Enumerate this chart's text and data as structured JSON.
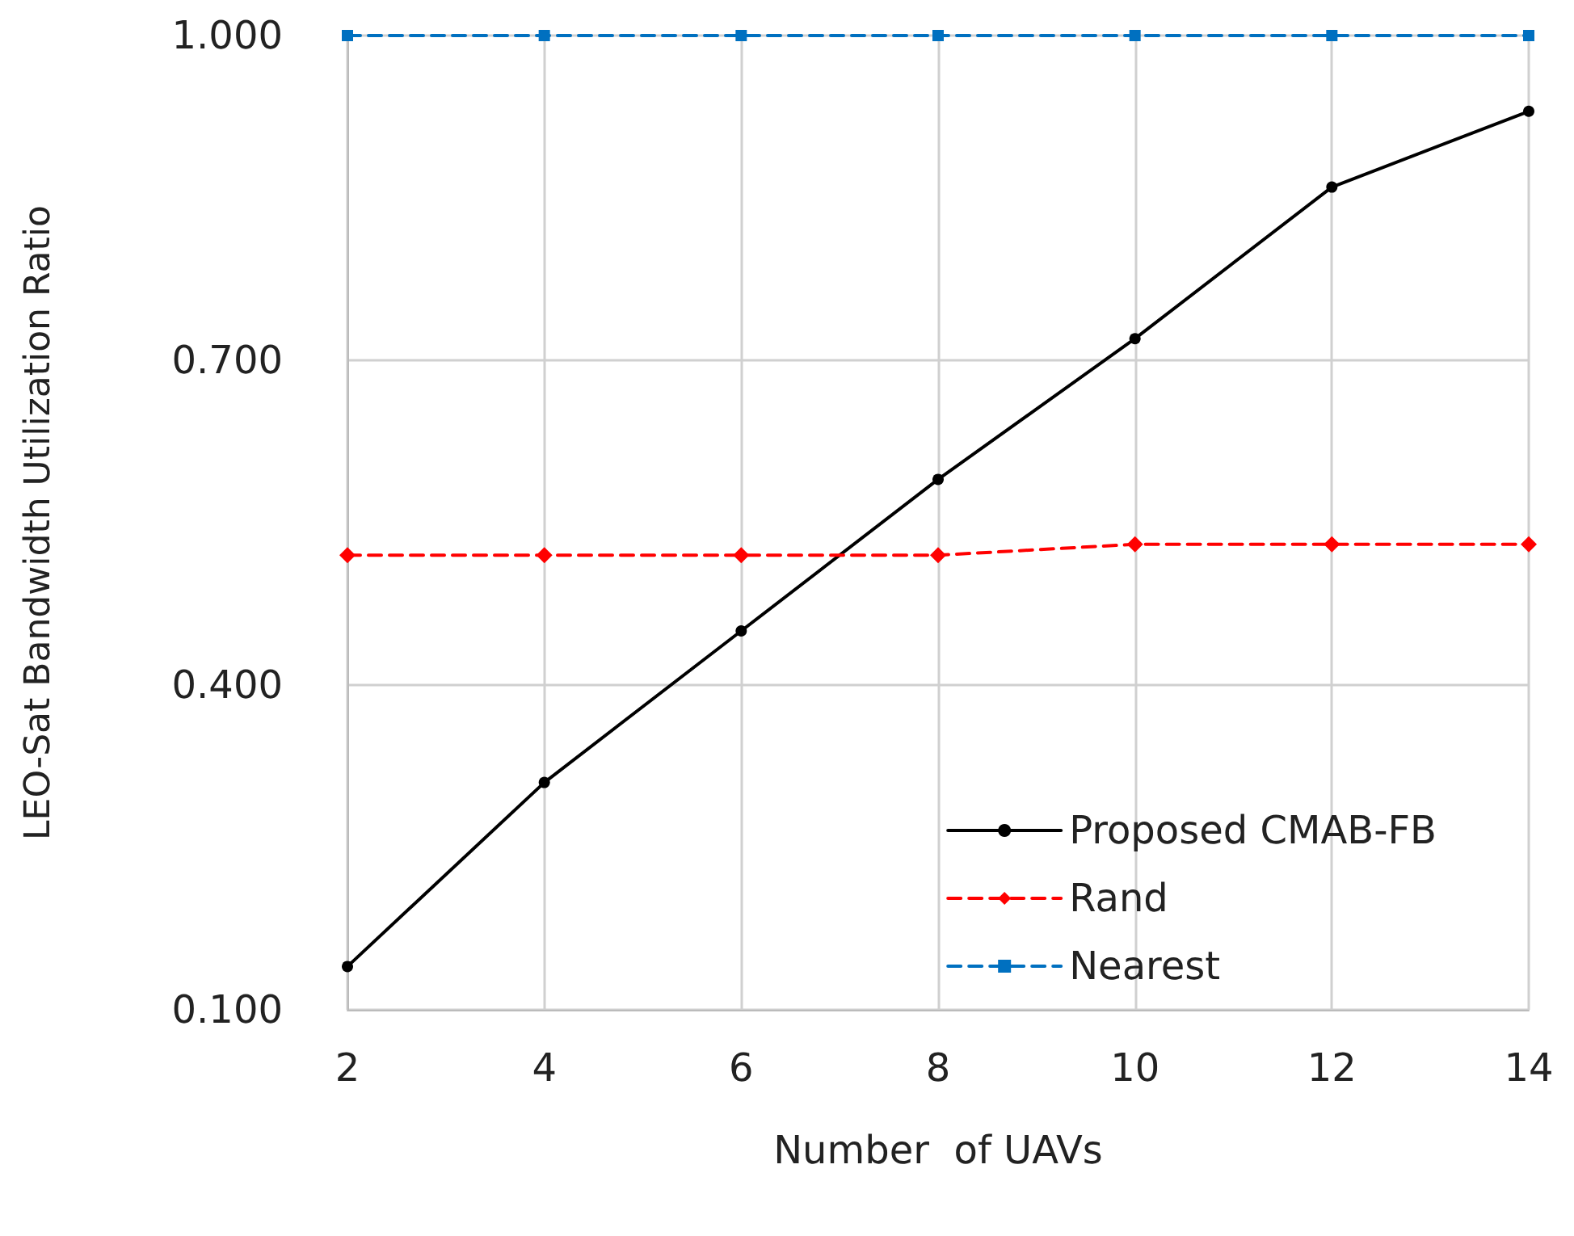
{
  "chart_data": {
    "type": "line",
    "xlabel": "Number  of UAVs",
    "ylabel": "LEO-Sat Bandwidth Utilization Ratio",
    "x": [
      2,
      4,
      6,
      8,
      10,
      12,
      14
    ],
    "series": [
      {
        "name": "Proposed CMAB-FB",
        "color": "#000000",
        "marker": "circle",
        "line_style": "solid",
        "values": [
          0.14,
          0.31,
          0.45,
          0.59,
          0.72,
          0.86,
          0.93
        ]
      },
      {
        "name": "Rand",
        "color": "#ff0000",
        "marker": "diamond",
        "line_style": "dashed",
        "values": [
          0.52,
          0.52,
          0.52,
          0.52,
          0.53,
          0.53,
          0.53
        ]
      },
      {
        "name": "Nearest",
        "color": "#0070c0",
        "marker": "square",
        "line_style": "dashed",
        "values": [
          1.0,
          1.0,
          1.0,
          1.0,
          1.0,
          1.0,
          1.0
        ]
      }
    ],
    "xlim": [
      2,
      14
    ],
    "xticks": [
      2,
      4,
      6,
      8,
      10,
      12,
      14
    ],
    "ylim": [
      0.1,
      1.0
    ],
    "yticks": [
      {
        "value": 0.1,
        "label": "0.100"
      },
      {
        "value": 0.4,
        "label": "0.400"
      },
      {
        "value": 0.7,
        "label": "0.700"
      },
      {
        "value": 1.0,
        "label": "1.000"
      }
    ],
    "grid": true,
    "legend": "bottom right"
  }
}
